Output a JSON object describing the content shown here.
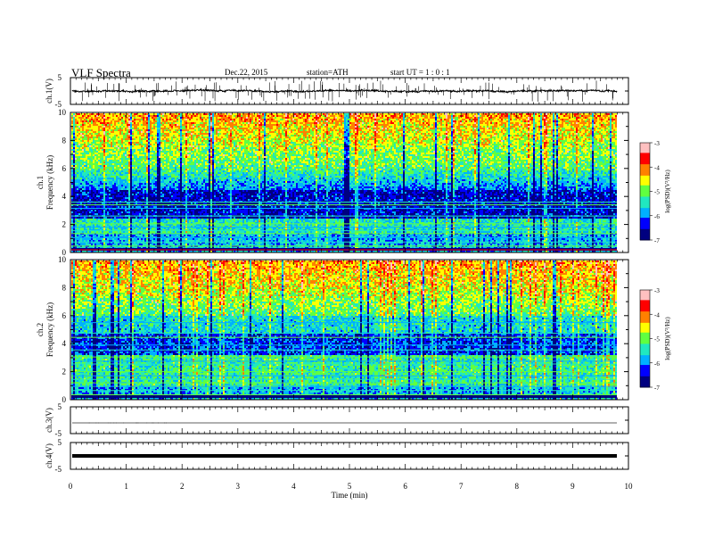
{
  "header": {
    "title": "VLF  Spectra",
    "date": "Dec.22, 2015",
    "station": "station=ATH",
    "start": "start  UT  =   1 : 0  : 1"
  },
  "colors": {
    "spectrogram_scale": [
      "#000080",
      "#0000ff",
      "#00b0ff",
      "#20e8c0",
      "#60ff40",
      "#ffff00",
      "#ff8000",
      "#ff0000",
      "#ffc0c0"
    ],
    "trace": "#000000"
  },
  "chart_data": [
    {
      "type": "line",
      "name": "ch1",
      "ylabel": "ch.1(V)",
      "ylim": [
        -5,
        5
      ],
      "yticks": [
        "5",
        "-5"
      ],
      "xlim": [
        0,
        10
      ],
      "baseline_v": 0.0
    },
    {
      "type": "heatmap",
      "name": "ch1-spectrogram",
      "ylabel_top": "ch.1",
      "ylabel": "Frequency  (kHz)",
      "ylim": [
        0,
        10
      ],
      "yticks": [
        "0",
        "2",
        "4",
        "6",
        "8",
        "10"
      ],
      "xlim": [
        0,
        9.8
      ],
      "colorbar": {
        "label": "log(PSD)(V²/Hz)",
        "ticks": [
          "-3",
          "-4",
          "-5",
          "-6",
          "-7"
        ],
        "range": [
          -7,
          -3
        ]
      }
    },
    {
      "type": "heatmap",
      "name": "ch2-spectrogram",
      "ylabel_top": "ch.2",
      "ylabel": "Frequency  (kHz)",
      "ylim": [
        0,
        10
      ],
      "yticks": [
        "0",
        "2",
        "4",
        "6",
        "8",
        "10"
      ],
      "xlim": [
        0,
        9.8
      ],
      "colorbar": {
        "label": "log(PSD)(V²/Hz)",
        "ticks": [
          "-3",
          "-4",
          "-5",
          "-6",
          "-7"
        ],
        "range": [
          -7,
          -3
        ]
      }
    },
    {
      "type": "line",
      "name": "ch3",
      "ylabel": "ch.3(V)",
      "ylim": [
        -5,
        5
      ],
      "yticks": [
        "5",
        "-5"
      ],
      "xlim": [
        0,
        10
      ],
      "baseline_v": 0.0
    },
    {
      "type": "line",
      "name": "ch4",
      "ylabel": "ch.4(V)",
      "ylim": [
        -5,
        5
      ],
      "yticks": [
        "5",
        "-5"
      ],
      "xlim": [
        0,
        10
      ],
      "baseline_v": 0.0
    }
  ],
  "xaxis": {
    "label": "Time  (min)",
    "ticks": [
      "0",
      "1",
      "2",
      "3",
      "4",
      "5",
      "6",
      "7",
      "8",
      "9",
      "10"
    ]
  }
}
